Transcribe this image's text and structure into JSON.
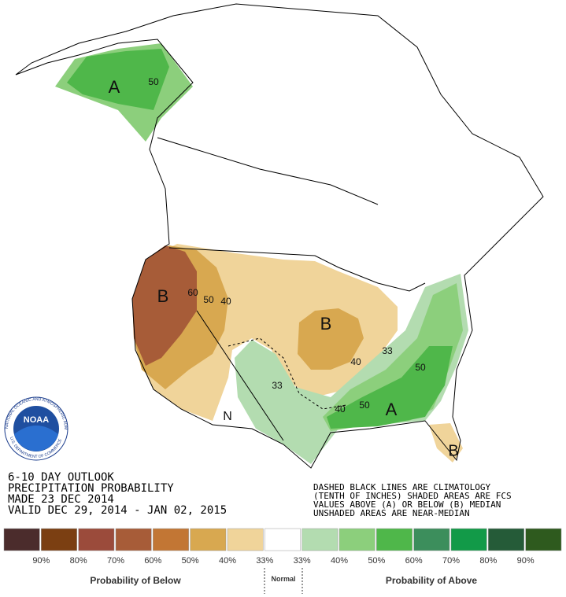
{
  "title_block": [
    "6-10 DAY OUTLOOK",
    "PRECIPITATION PROBABILITY",
    "MADE  23 DEC 2014",
    "VALID  DEC 29, 2014 - JAN 02, 2015"
  ],
  "notes": [
    "DASHED BLACK LINES ARE CLIMATOLOGY",
    "(TENTH OF INCHES) SHADED AREAS ARE FCS",
    "VALUES ABOVE (A) OR BELOW (B) MEDIAN",
    "UNSHADED AREAS ARE NEAR-MEDIAN"
  ],
  "map_labels": [
    "A",
    "50",
    "B",
    "60",
    "50",
    "40",
    "B",
    "33",
    "40",
    "50",
    "33",
    "40",
    "50",
    "A",
    "N",
    "B"
  ],
  "logo": {
    "name": "NOAA",
    "ring_top": "NATIONAL OCEANIC AND ATMOSPHERIC ADMINISTRATION",
    "ring_bottom": "U.S. DEPARTMENT OF COMMERCE"
  },
  "legend": {
    "colors": [
      "#4b2c2c",
      "#7b3f12",
      "#9b4b3b",
      "#a75c38",
      "#c27634",
      "#d8a850",
      "#f0d49a",
      "#ffffff",
      "#b3dcb0",
      "#8ccf7c",
      "#4fb74a",
      "#3c8e5c",
      "#129a48",
      "#255b38",
      "#2e5a1e"
    ],
    "labels": [
      "90%",
      "80%",
      "70%",
      "60%",
      "50%",
      "40%",
      "33%",
      "33%",
      "40%",
      "50%",
      "60%",
      "70%",
      "80%",
      "90%"
    ],
    "below": "Probability of Below",
    "normal": "Normal",
    "above": "Probability of Above"
  }
}
